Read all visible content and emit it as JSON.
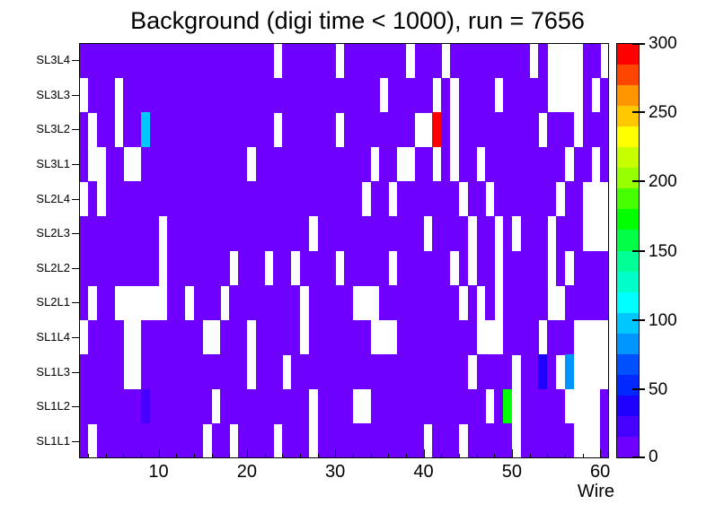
{
  "title": "Background (digi time < 1000), run = 7656",
  "colors": {
    "background": "#ffffff",
    "frame": "#000000",
    "base_cell": "#6f00ff",
    "empty_cell": "#ffffff"
  },
  "chart_data": {
    "type": "heatmap",
    "title": "Background (digi time < 1000), run = 7656",
    "xlabel": "Wire",
    "ylabel": "",
    "x_range": [
      1,
      61
    ],
    "n_cols": 60,
    "x_major_ticks": [
      10,
      20,
      30,
      40,
      50,
      60
    ],
    "x_minor_tick_step": 2,
    "rows_top_to_bottom": [
      "SL3L4",
      "SL3L3",
      "SL3L2",
      "SL3L1",
      "SL2L4",
      "SL2L3",
      "SL2L2",
      "SL2L1",
      "SL1L4",
      "SL1L3",
      "SL1L2",
      "SL1L1"
    ],
    "grid": false,
    "base_value": 1,
    "zlim": [
      0,
      300
    ],
    "colorbar": {
      "position": "right",
      "ticks": [
        0,
        50,
        100,
        150,
        200,
        250,
        300
      ],
      "colors": [
        "#6f00ff",
        "#4600ff",
        "#1e00ff",
        "#0028ff",
        "#0050ff",
        "#0096ff",
        "#00c8ff",
        "#00ffff",
        "#00ffc8",
        "#00ff96",
        "#00ff46",
        "#00ff00",
        "#46ff00",
        "#96ff00",
        "#c8ff00",
        "#ffff00",
        "#ffc800",
        "#ff9600",
        "#ff4600",
        "#ff0000"
      ]
    },
    "empty_cells": {
      "SL3L4": [
        23,
        30,
        38,
        42,
        52,
        54,
        55,
        56,
        57,
        60
      ],
      "SL3L3": [
        1,
        5,
        35,
        41,
        43,
        48,
        54,
        55,
        56,
        57,
        59
      ],
      "SL3L2": [
        2,
        5,
        23,
        30,
        39,
        40,
        43,
        53,
        57
      ],
      "SL3L1": [
        2,
        3,
        6,
        7,
        20,
        34,
        37,
        38,
        41,
        43,
        46,
        56,
        59
      ],
      "SL2L4": [
        1,
        3,
        33,
        36,
        44,
        47,
        55,
        58,
        59,
        60
      ],
      "SL2L3": [
        10,
        27,
        40,
        45,
        48,
        50,
        54,
        58,
        59,
        60
      ],
      "SL2L2": [
        10,
        18,
        22,
        25,
        30,
        36,
        43,
        45,
        48,
        54,
        56
      ],
      "SL2L1": [
        2,
        5,
        6,
        7,
        8,
        9,
        10,
        13,
        17,
        26,
        32,
        33,
        34,
        44,
        46,
        48,
        54,
        55
      ],
      "SL1L4": [
        1,
        6,
        7,
        15,
        16,
        20,
        26,
        34,
        35,
        36,
        46,
        47,
        48,
        53,
        57,
        58,
        59,
        60
      ],
      "SL1L3": [
        6,
        7,
        20,
        24,
        45,
        50,
        55,
        57,
        58,
        59,
        60
      ],
      "SL1L2": [
        16,
        27,
        32,
        33,
        47,
        50,
        56,
        57,
        58,
        59
      ],
      "SL1L1": [
        2,
        15,
        18,
        23,
        27,
        40,
        44,
        50,
        57,
        58,
        59
      ]
    },
    "special_cells": [
      {
        "row": "SL3L2",
        "col": 8,
        "value": 100
      },
      {
        "row": "SL3L2",
        "col": 41,
        "value": 300
      },
      {
        "row": "SL1L3",
        "col": 53,
        "value": 40
      },
      {
        "row": "SL1L3",
        "col": 56,
        "value": 85
      },
      {
        "row": "SL1L2",
        "col": 8,
        "value": 20
      },
      {
        "row": "SL1L2",
        "col": 49,
        "value": 170
      }
    ]
  }
}
